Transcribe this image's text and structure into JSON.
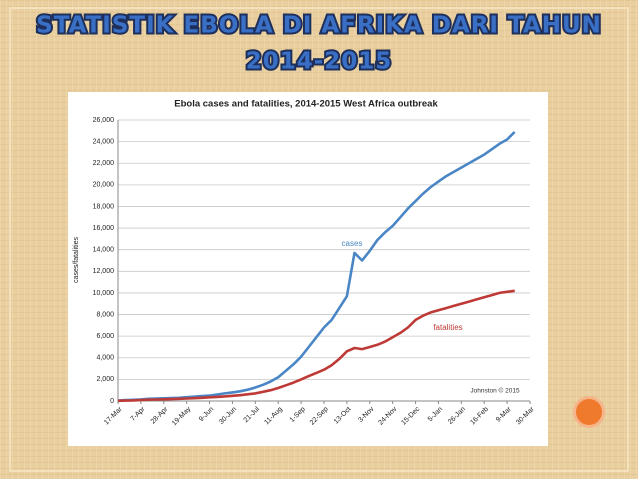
{
  "slide_title": [
    "STATISTIK EBOLA DI AFRIKA DARI TAHUN",
    "2014-2015"
  ],
  "chart_data": {
    "type": "line",
    "title": "Ebola cases and fatalities, 2014-2015 West Africa outbreak",
    "y_label": "cases/fatalities",
    "annotations": [
      "cases",
      "fatalities",
      "Johnston © 2015"
    ],
    "categories": [
      "17-Mar",
      null,
      null,
      "7-Apr",
      null,
      null,
      "28-Apr",
      null,
      null,
      "19-May",
      null,
      null,
      "9-Jun",
      null,
      null,
      "30-Jun",
      null,
      null,
      "21-Jul",
      null,
      null,
      "11-Aug",
      null,
      null,
      "1-Sep",
      null,
      null,
      "22-Sep",
      null,
      null,
      "13-Oct",
      null,
      null,
      "3-Nov",
      null,
      null,
      "24-Nov",
      null,
      null,
      "15-Dec",
      null,
      null,
      "5-Jan",
      null,
      null,
      "26-Jan",
      null,
      null,
      "16-Feb",
      null,
      null,
      "9-Mar",
      null,
      null,
      "30-Mar"
    ],
    "series": [
      {
        "name": "cases",
        "color": "#4a86c5",
        "values": [
          50,
          80,
          110,
          150,
          200,
          230,
          250,
          270,
          300,
          350,
          400,
          450,
          500,
          600,
          700,
          800,
          900,
          1050,
          1250,
          1500,
          1800,
          2200,
          2800,
          3400,
          4100,
          5000,
          5900,
          6800,
          7500,
          8600,
          9700,
          13700,
          13000,
          13900,
          14900,
          15600,
          16200,
          17000,
          17800,
          18500,
          19200,
          19800,
          20300,
          20800,
          21200,
          21600,
          22000,
          22400,
          22800,
          23300,
          23800,
          24200,
          24900,
          null,
          null
        ]
      },
      {
        "name": "fatalities",
        "color": "#be3a36",
        "values": [
          20,
          40,
          60,
          90,
          120,
          140,
          160,
          180,
          200,
          230,
          260,
          300,
          340,
          380,
          430,
          480,
          540,
          620,
          700,
          850,
          1000,
          1200,
          1450,
          1700,
          2000,
          2300,
          2600,
          2900,
          3300,
          3900,
          4600,
          4900,
          4800,
          5000,
          5200,
          5500,
          5900,
          6300,
          6800,
          7500,
          7900,
          8200,
          8400,
          8600,
          8800,
          9000,
          9200,
          9400,
          9600,
          9800,
          10000,
          10100,
          10200,
          null,
          null
        ]
      }
    ],
    "ylim": [
      0,
      26000
    ],
    "yticks": [
      0,
      {
        "value": 2000,
        "label": "2,000"
      },
      {
        "value": 4000,
        "label": "4,000"
      },
      {
        "value": 6000,
        "label": "6,000"
      },
      {
        "value": 8000,
        "label": "8,000"
      },
      {
        "value": 10000,
        "label": "10,000"
      },
      {
        "value": 12000,
        "label": "12,000"
      },
      {
        "value": 14000,
        "label": "14,000"
      },
      {
        "value": 16000,
        "label": "16,000"
      },
      {
        "value": 18000,
        "label": "18,000"
      },
      {
        "value": 20000,
        "label": "20,000"
      },
      {
        "value": 22000,
        "label": "22,000"
      },
      {
        "value": 24000,
        "label": "24,000"
      },
      {
        "value": 26000,
        "label": "26,000"
      }
    ],
    "grid": true
  }
}
